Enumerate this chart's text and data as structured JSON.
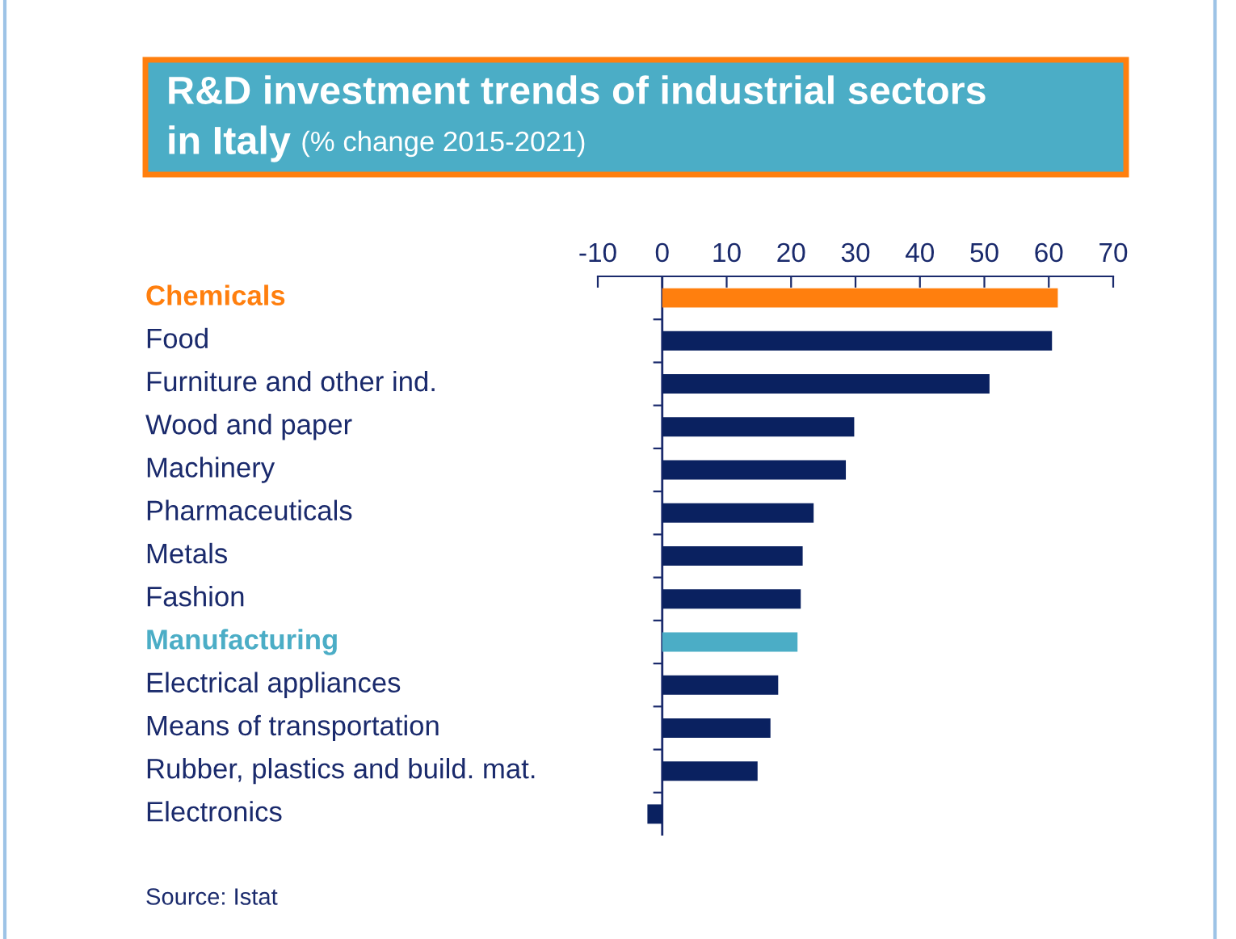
{
  "chart_data": {
    "type": "bar",
    "orientation": "horizontal",
    "title": "R&D investment trends of industrial sectors\nin Italy",
    "subtitle": "(% change 2015-2021)",
    "categories": [
      "Chemicals",
      "Food",
      "Furniture and other ind.",
      "Wood and paper",
      "Machinery",
      "Pharmaceuticals",
      "Metals",
      "Fashion",
      "Manufacturing",
      "Electrical appliances",
      "Means of transportation",
      "Rubber, plastics and build. mat.",
      "Electronics"
    ],
    "values": [
      61.4,
      60.5,
      50.8,
      29.8,
      28.5,
      23.5,
      21.8,
      21.5,
      21.0,
      18.0,
      16.8,
      14.8,
      -2.3
    ],
    "colors": [
      "#ff7f0e",
      "#0a2160",
      "#0a2160",
      "#0a2160",
      "#0a2160",
      "#0a2160",
      "#0a2160",
      "#0a2160",
      "#4badc6",
      "#0a2160",
      "#0a2160",
      "#0a2160",
      "#0a2160"
    ],
    "xlim": [
      -10,
      70
    ],
    "xticks": [
      -10,
      0,
      10,
      20,
      30,
      40,
      50,
      60,
      70
    ],
    "ref_lines": [
      {
        "axis": "x",
        "value": 0,
        "color": "#1a2a6c"
      }
    ],
    "grid": false,
    "legend": false,
    "annotations": [
      "Source: Istat"
    ]
  }
}
